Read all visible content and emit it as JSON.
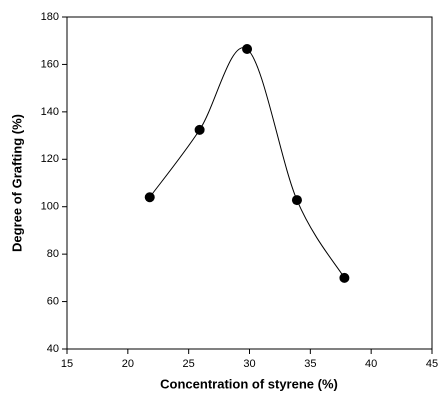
{
  "chart_data": {
    "type": "scatter",
    "x_label": "Concentration of styrene (%)",
    "y_label": "Degree of Grafting (%)",
    "x": [
      21.8,
      25.9,
      29.8,
      33.9,
      37.8
    ],
    "values": [
      104,
      132.4,
      166.5,
      102.8,
      70
    ],
    "color": "#000000",
    "smooth_line": true,
    "xlim": [
      15,
      45
    ],
    "xticks": [
      15,
      20,
      25,
      30,
      35,
      40,
      45
    ],
    "ylim": [
      40,
      180
    ],
    "yticks": [
      40,
      60,
      80,
      100,
      120,
      140,
      160,
      180
    ],
    "grid": false
  }
}
